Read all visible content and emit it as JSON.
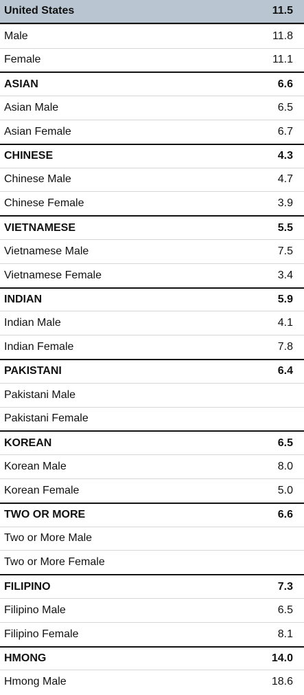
{
  "rows": [
    {
      "label": "United States",
      "value": "11.5",
      "kind": "header"
    },
    {
      "label": "Male",
      "value": "11.8",
      "kind": "sub"
    },
    {
      "label": "Female",
      "value": "11.1",
      "kind": "sub"
    },
    {
      "label": "ASIAN",
      "value": "6.6",
      "kind": "header"
    },
    {
      "label": "Asian Male",
      "value": "6.5",
      "kind": "sub"
    },
    {
      "label": "Asian Female",
      "value": "6.7",
      "kind": "sub"
    },
    {
      "label": "CHINESE",
      "value": "4.3",
      "kind": "header"
    },
    {
      "label": "Chinese Male",
      "value": "4.7",
      "kind": "sub"
    },
    {
      "label": "Chinese Female",
      "value": "3.9",
      "kind": "sub"
    },
    {
      "label": "VIETNAMESE",
      "value": "5.5",
      "kind": "header"
    },
    {
      "label": "Vietnamese Male",
      "value": "7.5",
      "kind": "sub"
    },
    {
      "label": "Vietnamese Female",
      "value": "3.4",
      "kind": "sub"
    },
    {
      "label": "INDIAN",
      "value": "5.9",
      "kind": "header"
    },
    {
      "label": "Indian Male",
      "value": "4.1",
      "kind": "sub"
    },
    {
      "label": "Indian Female",
      "value": "7.8",
      "kind": "sub"
    },
    {
      "label": "PAKISTANI",
      "value": "6.4",
      "kind": "header"
    },
    {
      "label": "Pakistani Male",
      "value": "",
      "kind": "sub"
    },
    {
      "label": "Pakistani Female",
      "value": "",
      "kind": "sub"
    },
    {
      "label": "KOREAN",
      "value": "6.5",
      "kind": "header"
    },
    {
      "label": "Korean Male",
      "value": "8.0",
      "kind": "sub"
    },
    {
      "label": "Korean Female",
      "value": "5.0",
      "kind": "sub"
    },
    {
      "label": "TWO OR MORE",
      "value": "6.6",
      "kind": "header"
    },
    {
      "label": "Two or More Male",
      "value": "",
      "kind": "sub"
    },
    {
      "label": "Two or More Female",
      "value": "",
      "kind": "sub"
    },
    {
      "label": "FILIPINO",
      "value": "7.3",
      "kind": "header"
    },
    {
      "label": "Filipino Male",
      "value": "6.5",
      "kind": "sub"
    },
    {
      "label": "Filipino Female",
      "value": "8.1",
      "kind": "sub"
    },
    {
      "label": "HMONG",
      "value": "14.0",
      "kind": "header"
    },
    {
      "label": "Hmong Male",
      "value": "18.6",
      "kind": "sub"
    }
  ],
  "colors": {
    "first_row_background": "#b9c6d1",
    "rule": "#111111",
    "thin_rule": "#d6d6d6"
  }
}
